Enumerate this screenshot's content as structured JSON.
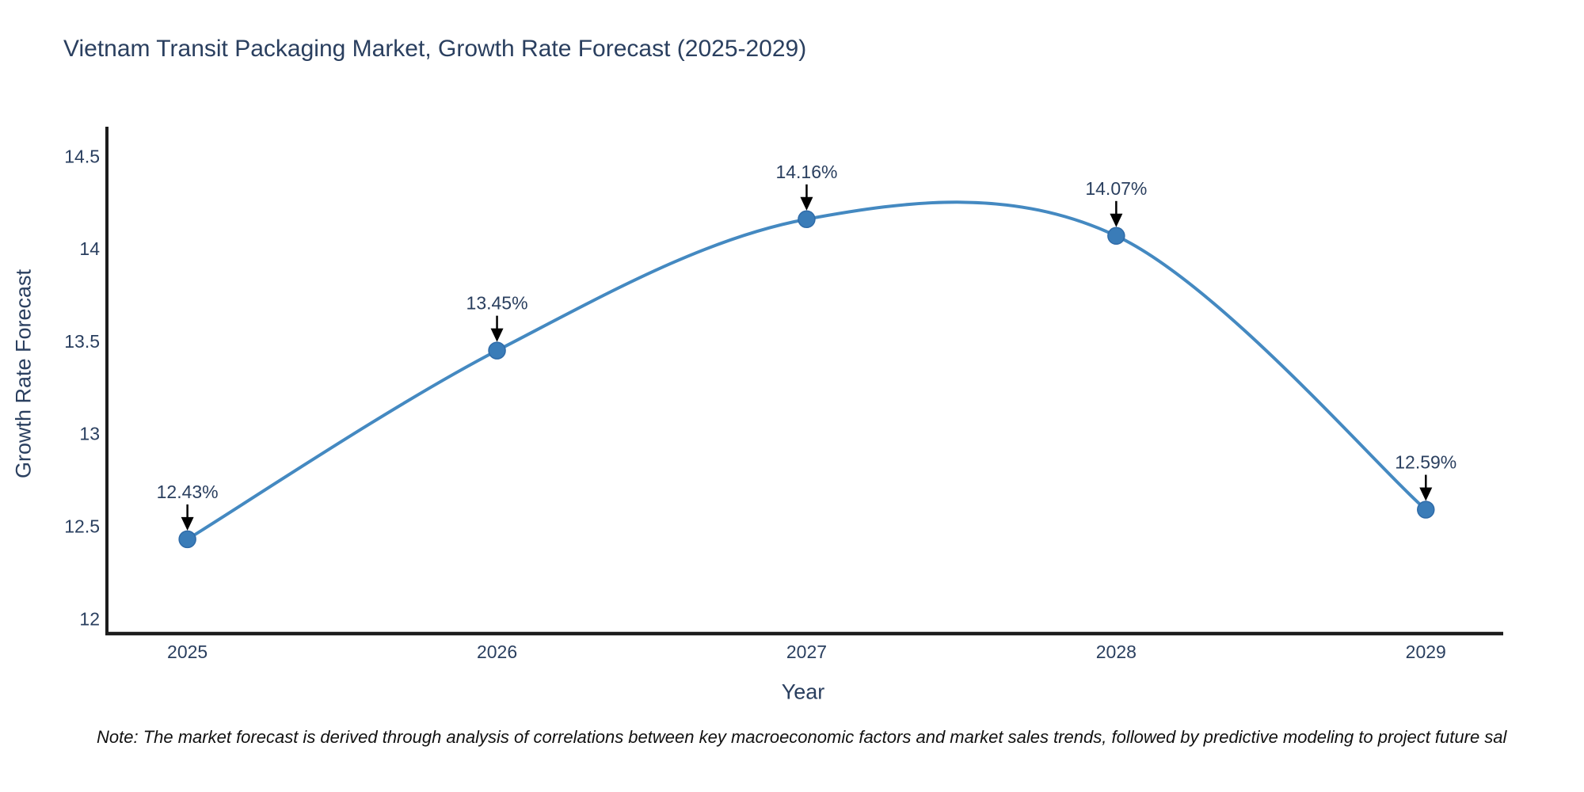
{
  "note": "Note: The market forecast is derived through analysis of correlations between key macroeconomic factors and market sales trends, followed by predictive modeling to project future sal",
  "chart_data": {
    "type": "line",
    "title": "Vietnam Transit Packaging Market, Growth Rate Forecast (2025-2029)",
    "xlabel": "Year",
    "ylabel": "Growth Rate Forecast",
    "x": [
      2025,
      2026,
      2027,
      2028,
      2029
    ],
    "series": [
      {
        "name": "Growth Rate Forecast",
        "values": [
          12.43,
          13.45,
          14.16,
          14.07,
          12.59
        ]
      }
    ],
    "point_labels": [
      "12.43%",
      "13.45%",
      "14.16%",
      "14.07%",
      "12.59%"
    ],
    "xtick_labels": [
      "2025",
      "2026",
      "2027",
      "2028",
      "2029"
    ],
    "yticks": [
      12,
      12.5,
      13,
      13.5,
      14,
      14.5
    ],
    "ytick_labels": [
      "12",
      "12.5",
      "13",
      "13.5",
      "14",
      "14.5"
    ],
    "xlim": [
      2024.74,
      2029.25
    ],
    "ylim": [
      11.92,
      14.66
    ],
    "grid": false,
    "legend_position": "none",
    "line_shape": "spline",
    "colors": {
      "line": "#4489c1",
      "marker": "#3a7cb8",
      "marker_edge": "#2f6ba8",
      "axis_line": "#1c1c1c",
      "text": "#2a3f5f",
      "annotation_arrow": "#000000"
    }
  }
}
